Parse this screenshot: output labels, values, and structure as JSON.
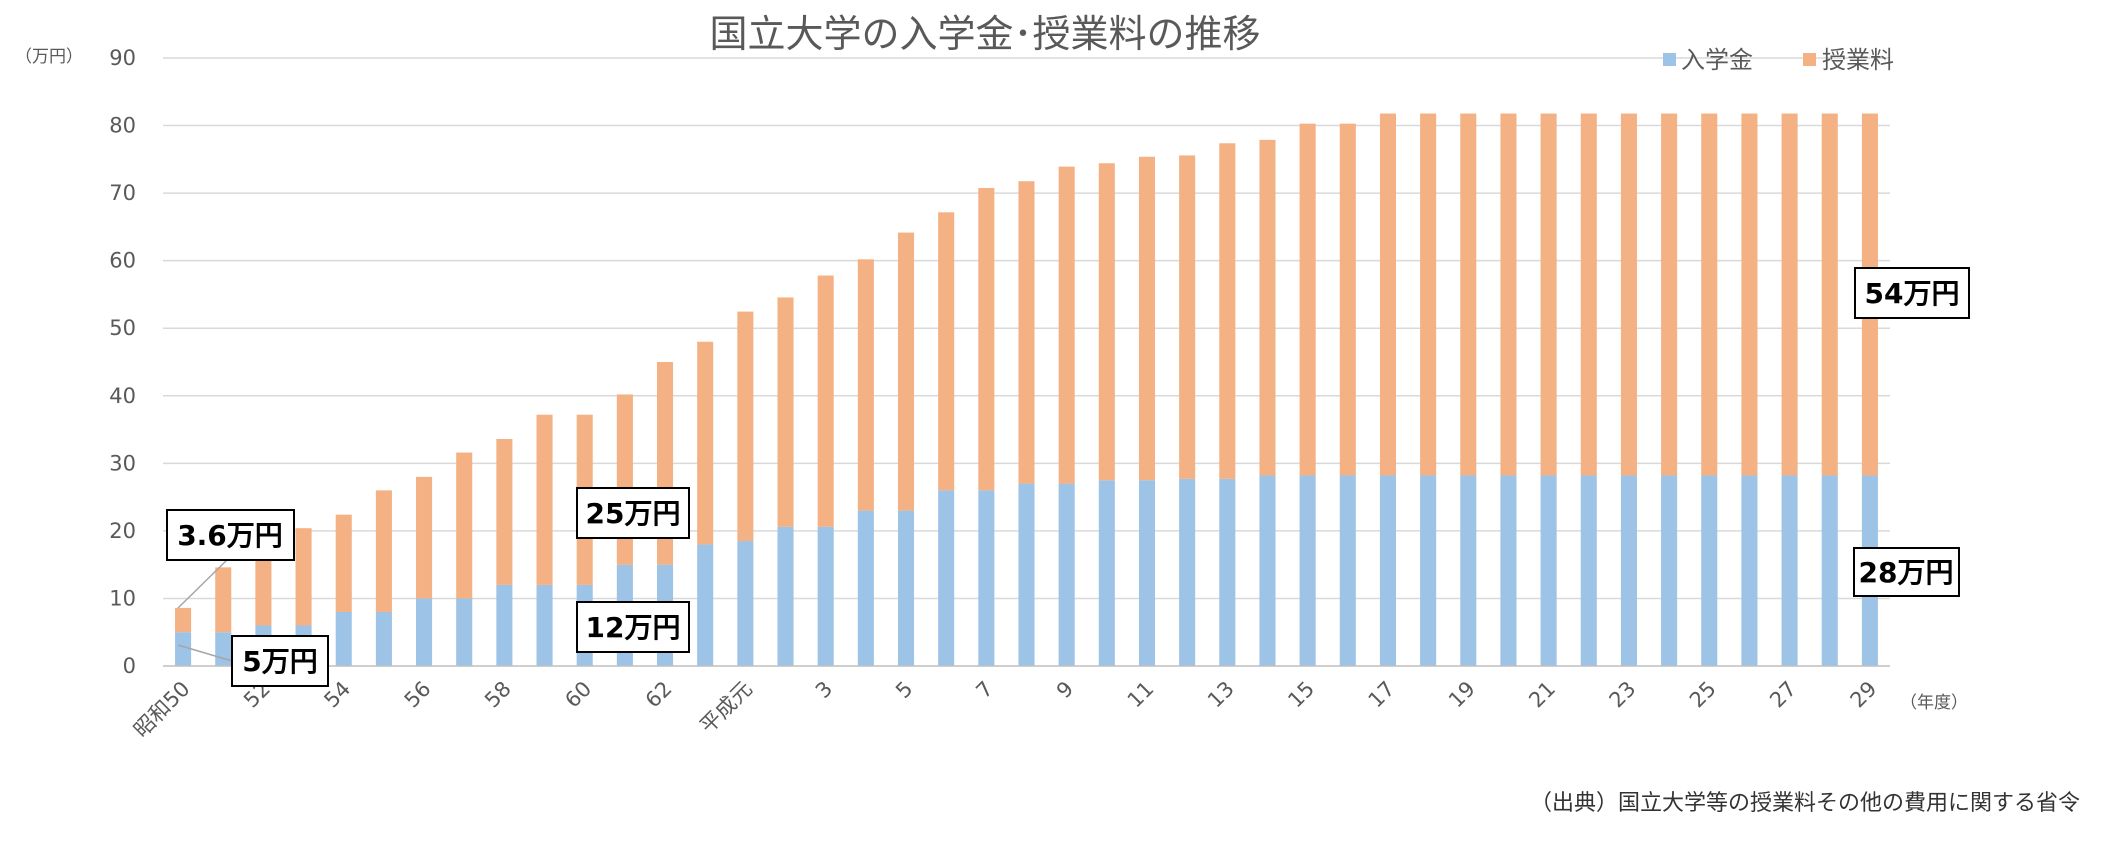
{
  "colors": {
    "entrance": "#9dc3e6",
    "tuition": "#f4b183",
    "grid": "#d9d9d9",
    "axis": "#bfbfbf"
  },
  "chart_data": {
    "type": "bar",
    "stacked": true,
    "title": "国立大学の入学金･授業料の推移",
    "y_unit": "（万円）",
    "x_unit": "（年度）",
    "ylim": [
      0,
      90
    ],
    "yticks": [
      0,
      10,
      20,
      30,
      40,
      50,
      60,
      70,
      80,
      90
    ],
    "grid": true,
    "legend_position": "top-right",
    "categories": [
      "昭和50",
      "51",
      "52",
      "53",
      "54",
      "55",
      "56",
      "57",
      "58",
      "59",
      "60",
      "61",
      "62",
      "63",
      "平成元",
      "2",
      "3",
      "4",
      "5",
      "6",
      "7",
      "8",
      "9",
      "10",
      "11",
      "12",
      "13",
      "14",
      "15",
      "16",
      "17",
      "18",
      "19",
      "20",
      "21",
      "22",
      "23",
      "24",
      "25",
      "26",
      "27",
      "28",
      "29"
    ],
    "x_tick_labels": [
      "昭和50",
      "",
      "52",
      "",
      "54",
      "",
      "56",
      "",
      "58",
      "",
      "60",
      "",
      "62",
      "",
      "平成元",
      "",
      "3",
      "",
      "5",
      "",
      "7",
      "",
      "9",
      "",
      "11",
      "",
      "13",
      "",
      "15",
      "",
      "17",
      "",
      "19",
      "",
      "21",
      "",
      "23",
      "",
      "25",
      "",
      "27",
      "",
      "29"
    ],
    "series": [
      {
        "name": "入学金",
        "color_key": "entrance",
        "values": [
          5,
          5,
          6,
          6,
          8,
          8,
          10,
          10,
          12,
          12,
          12,
          15,
          15,
          18,
          18.5,
          20.6,
          20.6,
          23,
          23,
          26,
          26,
          27,
          27,
          27.5,
          27.5,
          27.7,
          27.7,
          28.2,
          28.2,
          28.2,
          28.2,
          28.2,
          28.2,
          28.2,
          28.2,
          28.2,
          28.2,
          28.2,
          28.2,
          28.2,
          28.2,
          28.2,
          28.2
        ]
      },
      {
        "name": "授業料",
        "color_key": "tuition",
        "values": [
          3.6,
          9.6,
          9.6,
          14.4,
          14.4,
          18,
          18,
          21.6,
          21.6,
          25.2,
          25.2,
          25.2,
          30,
          30,
          33.96,
          33.96,
          37.2,
          37.2,
          41.16,
          41.16,
          44.76,
          44.76,
          46.92,
          46.92,
          47.88,
          47.88,
          49.68,
          49.68,
          52.08,
          52.08,
          53.58,
          53.58,
          53.58,
          53.58,
          53.58,
          53.58,
          53.58,
          53.58,
          53.58,
          53.58,
          53.58,
          53.58,
          53.58
        ]
      }
    ],
    "annotations": [
      "3.6万円",
      "5万円",
      "25万円",
      "12万円",
      "54万円",
      "28万円"
    ]
  },
  "source": "（出典）国立大学等の授業料その他の費用に関する省令"
}
